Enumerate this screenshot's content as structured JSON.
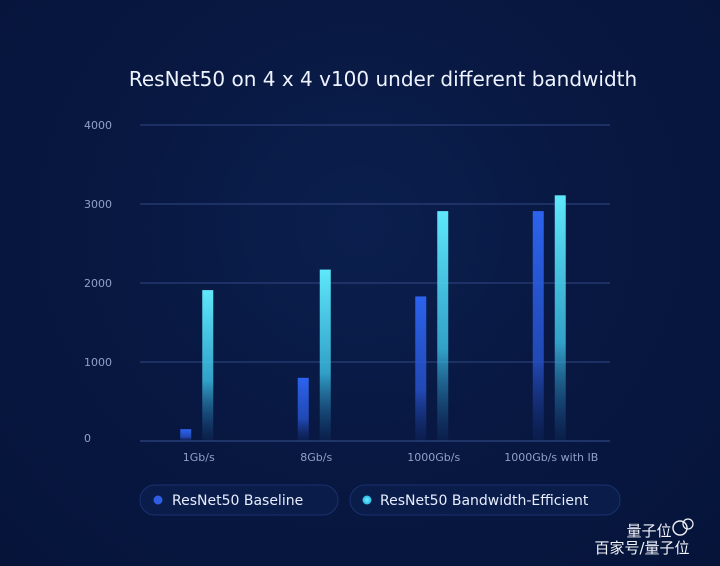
{
  "chart_data": {
    "type": "bar",
    "title": "ResNet50  on 4 x 4 v100 under different bandwidth",
    "categories": [
      "1Gb/s",
      "8Gb/s",
      "1000Gb/s",
      "1000Gb/s with IB"
    ],
    "series": [
      {
        "name": "ResNet50 Baseline",
        "values": [
          150,
          800,
          1830,
          2910
        ],
        "color": "#2f5fe0"
      },
      {
        "name": "ResNet50 Bandwidth-Efficient",
        "values": [
          1910,
          2170,
          2910,
          3110
        ],
        "color": "#45d6f2"
      }
    ],
    "y_ticks": [
      "4000",
      "3000",
      "2000",
      "1000",
      "0"
    ],
    "ylim": [
      0,
      4000
    ],
    "grid": true,
    "legend_position": "bottom"
  },
  "watermark": {
    "line1": "量子位",
    "line2": "百家号/量子位"
  }
}
